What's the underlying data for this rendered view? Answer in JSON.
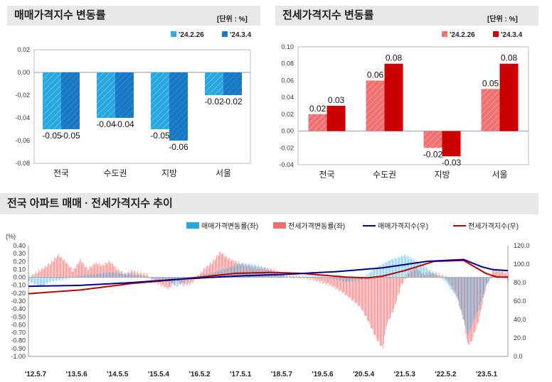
{
  "panels": {
    "sale": {
      "title": "매매가격지수 변동률",
      "unit": "[단위 : %]"
    },
    "jeonse": {
      "title": "전세가격지수 변동률",
      "unit": "[단위 : %]"
    },
    "trend": {
      "title": "전국 아파트 매매 · 전세가격지수 추이"
    }
  },
  "colors": {
    "sale_prev": "#29a8e0",
    "sale_curr": "#1a78c2",
    "jeonse_prev": "#f07070",
    "jeonse_curr": "#cc0000",
    "sale_index_line": "#00008b",
    "jeonse_index_line": "#c00000"
  },
  "chart_data": [
    {
      "type": "bar",
      "categories": [
        "전국",
        "수도권",
        "지방",
        "서울"
      ],
      "series": [
        {
          "name": "'24.2.26",
          "values": [
            -0.05,
            -0.04,
            -0.05,
            -0.02
          ]
        },
        {
          "name": "'24.3.4",
          "values": [
            -0.05,
            -0.04,
            -0.06,
            -0.02
          ]
        }
      ],
      "data_labels": [
        [
          "-0.05",
          "-0.05"
        ],
        [
          "-0.04",
          "-0.04"
        ],
        [
          "-0.05",
          "-0.06"
        ],
        [
          "-0.02",
          "-0.02"
        ]
      ],
      "ylim": [
        -0.08,
        0.02
      ],
      "yticks": [
        "0.02",
        "0.00",
        "-0.02",
        "-0.04",
        "-0.06",
        "-0.08"
      ],
      "legend": "top-right",
      "grid": false
    },
    {
      "type": "bar",
      "categories": [
        "전국",
        "수도권",
        "지방",
        "서울"
      ],
      "series": [
        {
          "name": "'24.2.26",
          "values": [
            0.02,
            0.06,
            -0.02,
            0.05
          ]
        },
        {
          "name": "'24.3.4",
          "values": [
            0.03,
            0.08,
            -0.03,
            0.08
          ]
        }
      ],
      "data_labels": [
        [
          "0.02",
          "0.03"
        ],
        [
          "0.06",
          "0.08"
        ],
        [
          "-0.02",
          "-0.03"
        ],
        [
          "0.05",
          "0.08"
        ]
      ],
      "ylim": [
        -0.04,
        0.1
      ],
      "yticks": [
        "0.10",
        "0.08",
        "0.06",
        "0.04",
        "0.02",
        "0.00",
        "-0.02",
        "-0.04"
      ],
      "legend": "top-right",
      "grid": false
    },
    {
      "type": "line",
      "left_axis_label": "(%)",
      "left_ylim": [
        -1.0,
        0.4
      ],
      "left_yticks": [
        "0.40",
        "0.30",
        "0.20",
        "0.10",
        "0.00",
        "-0.10",
        "-0.20",
        "-0.30",
        "-0.40",
        "-0.50",
        "-0.60",
        "-0.70",
        "-0.80",
        "-0.90",
        "-1.00"
      ],
      "right_ylim": [
        0,
        120
      ],
      "right_yticks": [
        "120.0",
        "100.0",
        "80.0",
        "60.0",
        "40.0",
        "20.0",
        "0.0"
      ],
      "xticks": [
        "'12.5.7",
        "'13.5.6",
        "'14.5.5",
        "'15.5.4",
        "'16.5.2",
        "'17.5.1",
        "'18.5.7",
        "'19.5.6",
        "'20.5.4",
        "'21.5.3",
        "'22.5.2",
        "'23.5.1"
      ],
      "legend": "top-right",
      "series": [
        {
          "name": "매매가격변동률(좌)",
          "kind": "bar",
          "axis": "left",
          "keypoints": [
            [
              0,
              -0.05
            ],
            [
              3,
              -0.12
            ],
            [
              6,
              -0.05
            ],
            [
              10,
              -0.02
            ],
            [
              14,
              0.02
            ],
            [
              18,
              0.04
            ],
            [
              22,
              0.06
            ],
            [
              26,
              0.05
            ],
            [
              30,
              0.02
            ],
            [
              34,
              -0.02
            ],
            [
              38,
              -0.05
            ],
            [
              40,
              -0.12
            ],
            [
              44,
              0.0
            ],
            [
              50,
              0.06
            ],
            [
              58,
              0.18
            ],
            [
              62,
              0.15
            ],
            [
              66,
              0.08
            ],
            [
              70,
              0.01
            ],
            [
              74,
              0.0
            ],
            [
              78,
              0.02
            ],
            [
              82,
              -0.01
            ],
            [
              86,
              -0.06
            ],
            [
              90,
              -0.03
            ],
            [
              94,
              0.12
            ],
            [
              98,
              0.22
            ],
            [
              102,
              0.28
            ],
            [
              106,
              0.18
            ],
            [
              110,
              0.04
            ],
            [
              113,
              -0.05
            ],
            [
              116,
              -0.25
            ],
            [
              118,
              -0.55
            ],
            [
              119,
              -0.75
            ],
            [
              120,
              -0.62
            ],
            [
              122,
              -0.4
            ],
            [
              124,
              -0.1
            ],
            [
              126,
              0.03
            ],
            [
              128,
              0.02
            ],
            [
              130,
              -0.04
            ]
          ]
        },
        {
          "name": "전세가격변동률(좌)",
          "kind": "bar",
          "axis": "left",
          "keypoints": [
            [
              0,
              0.0
            ],
            [
              3,
              0.08
            ],
            [
              6,
              0.18
            ],
            [
              8,
              0.28
            ],
            [
              10,
              0.2
            ],
            [
              12,
              0.08
            ],
            [
              14,
              0.22
            ],
            [
              16,
              0.1
            ],
            [
              18,
              0.18
            ],
            [
              20,
              0.15
            ],
            [
              22,
              0.2
            ],
            [
              24,
              0.1
            ],
            [
              26,
              0.04
            ],
            [
              28,
              0.08
            ],
            [
              30,
              0.05
            ],
            [
              32,
              0.03
            ],
            [
              34,
              -0.05
            ],
            [
              36,
              -0.1
            ],
            [
              38,
              -0.14
            ],
            [
              40,
              -0.04
            ],
            [
              42,
              -0.1
            ],
            [
              44,
              -0.08
            ],
            [
              46,
              0.02
            ],
            [
              48,
              0.12
            ],
            [
              50,
              0.2
            ],
            [
              52,
              0.32
            ],
            [
              54,
              0.24
            ],
            [
              56,
              0.2
            ],
            [
              58,
              0.16
            ],
            [
              62,
              0.12
            ],
            [
              66,
              0.1
            ],
            [
              70,
              0.01
            ],
            [
              74,
              0.0
            ],
            [
              78,
              -0.04
            ],
            [
              82,
              -0.1
            ],
            [
              86,
              -0.22
            ],
            [
              90,
              -0.38
            ],
            [
              92,
              -0.55
            ],
            [
              94,
              -0.75
            ],
            [
              96,
              -0.9
            ],
            [
              97,
              -0.6
            ],
            [
              99,
              -0.4
            ],
            [
              101,
              -0.1
            ],
            [
              103,
              0.06
            ],
            [
              105,
              0.12
            ],
            [
              107,
              0.04
            ],
            [
              110,
              0.06
            ],
            [
              113,
              0.0
            ],
            [
              116,
              -0.22
            ],
            [
              118,
              -0.55
            ],
            [
              119,
              -0.85
            ],
            [
              120,
              -0.82
            ],
            [
              122,
              -0.55
            ],
            [
              124,
              -0.12
            ],
            [
              126,
              0.1
            ],
            [
              128,
              0.08
            ],
            [
              130,
              0.04
            ]
          ]
        },
        {
          "name": "매매가격지수(우)",
          "kind": "line",
          "axis": "right",
          "keypoints": [
            [
              0,
              76
            ],
            [
              14,
              77
            ],
            [
              28,
              80
            ],
            [
              42,
              84
            ],
            [
              56,
              87
            ],
            [
              70,
              89
            ],
            [
              84,
              92
            ],
            [
              96,
              96
            ],
            [
              108,
              103
            ],
            [
              118,
              105
            ],
            [
              123,
              97
            ],
            [
              126,
              94
            ],
            [
              130,
              93
            ]
          ]
        },
        {
          "name": "전세가격지수(우)",
          "kind": "line",
          "axis": "right",
          "keypoints": [
            [
              0,
              68
            ],
            [
              14,
              72
            ],
            [
              28,
              79
            ],
            [
              42,
              84
            ],
            [
              56,
              90
            ],
            [
              66,
              91
            ],
            [
              74,
              90
            ],
            [
              80,
              88
            ],
            [
              86,
              86
            ],
            [
              92,
              85
            ],
            [
              96,
              87
            ],
            [
              102,
              93
            ],
            [
              110,
              103
            ],
            [
              118,
              104
            ],
            [
              124,
              90
            ],
            [
              127,
              86
            ],
            [
              130,
              86
            ]
          ]
        }
      ]
    }
  ]
}
